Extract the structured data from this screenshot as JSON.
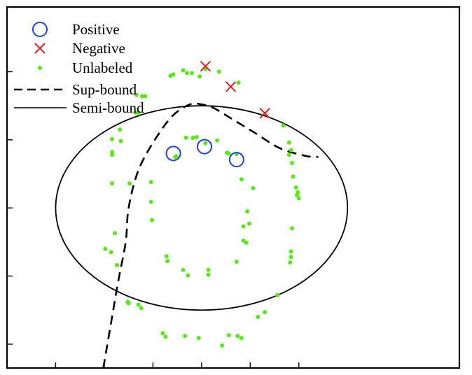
{
  "chart_data": {
    "type": "scatter",
    "title": "",
    "xlabel": "",
    "ylabel": "",
    "xlim": [
      -2.0,
      2.65
    ],
    "ylim": [
      -2.35,
      2.95
    ],
    "grid": false,
    "legend_placement": "top-left",
    "xticks": [
      -1.5,
      -1.0,
      -0.5,
      0.0,
      0.5,
      1.0
    ],
    "yticks": [
      -2.0,
      -1.0,
      0.0,
      1.0,
      2.0
    ],
    "tick_labels_shown": false,
    "series": [
      {
        "name": "Positive",
        "marker": "open-circle",
        "color": "#1f3fe0",
        "points": [
          [
            -0.29,
            0.8
          ],
          [
            0.03,
            0.9
          ],
          [
            0.36,
            0.71
          ]
        ]
      },
      {
        "name": "Negative",
        "marker": "x",
        "color": "#e0201e",
        "points": [
          [
            0.04,
            2.08
          ],
          [
            0.3,
            1.78
          ],
          [
            0.65,
            1.39
          ]
        ]
      },
      {
        "name": "Unlabeled",
        "marker": "dot",
        "color": "#57e818",
        "points": [
          [
            -0.32,
            1.94
          ],
          [
            -0.29,
            1.96
          ],
          [
            -0.19,
            2.02
          ],
          [
            -0.15,
            1.98
          ],
          [
            -0.1,
            1.98
          ],
          [
            -0.02,
            1.93
          ],
          [
            0.04,
            2.04
          ],
          [
            0.18,
            2.0
          ],
          [
            0.38,
            1.84
          ],
          [
            -0.67,
            1.66
          ],
          [
            -0.61,
            1.64
          ],
          [
            -0.58,
            1.64
          ],
          [
            -0.68,
            1.4
          ],
          [
            -0.65,
            1.4
          ],
          [
            -0.84,
            1.15
          ],
          [
            -0.83,
            0.98
          ],
          [
            -0.92,
            1.01
          ],
          [
            -0.92,
            0.82
          ],
          [
            -0.92,
            0.78
          ],
          [
            -0.92,
            0.36
          ],
          [
            -0.74,
            0.36
          ],
          [
            -0.89,
            -0.37
          ],
          [
            -0.93,
            -0.65
          ],
          [
            -0.99,
            -0.6
          ],
          [
            -0.87,
            -0.84
          ],
          [
            -0.76,
            -1.38
          ],
          [
            -0.75,
            -1.4
          ],
          [
            -0.65,
            -1.42
          ],
          [
            -0.62,
            -1.47
          ],
          [
            -0.4,
            -1.84
          ],
          [
            -0.37,
            -1.89
          ],
          [
            -0.17,
            -1.88
          ],
          [
            -0.03,
            -1.91
          ],
          [
            0.21,
            -2.02
          ],
          [
            0.28,
            -1.87
          ],
          [
            0.37,
            -1.88
          ],
          [
            0.41,
            -1.91
          ],
          [
            0.58,
            -1.6
          ],
          [
            0.65,
            -1.53
          ],
          [
            0.78,
            -1.28
          ],
          [
            0.91,
            -0.8
          ],
          [
            0.92,
            -0.72
          ],
          [
            0.92,
            -0.64
          ],
          [
            0.93,
            -0.3
          ],
          [
            0.98,
            0.19
          ],
          [
            1.0,
            0.14
          ],
          [
            0.99,
            0.23
          ],
          [
            0.97,
            0.3
          ],
          [
            0.94,
            0.46
          ],
          [
            0.93,
            0.66
          ],
          [
            0.9,
            0.78
          ],
          [
            0.92,
            0.85
          ],
          [
            0.9,
            0.96
          ],
          [
            0.84,
            1.21
          ],
          [
            -0.16,
            1.03
          ],
          [
            -0.09,
            1.03
          ],
          [
            -0.05,
            1.04
          ],
          [
            0.04,
            0.95
          ],
          [
            0.16,
            0.99
          ],
          [
            0.26,
            0.81
          ],
          [
            0.28,
            0.8
          ],
          [
            0.36,
            0.79
          ],
          [
            -0.26,
            0.76
          ],
          [
            -0.27,
            0.75
          ],
          [
            -0.52,
            0.38
          ],
          [
            -0.52,
            0.09
          ],
          [
            -0.51,
            -0.18
          ],
          [
            0.41,
            0.42
          ],
          [
            0.53,
            0.29
          ],
          [
            0.47,
            -0.05
          ],
          [
            0.43,
            -0.27
          ],
          [
            0.49,
            -0.23
          ],
          [
            0.43,
            -0.48
          ],
          [
            0.46,
            -0.51
          ],
          [
            0.36,
            -0.79
          ],
          [
            -0.36,
            -0.71
          ],
          [
            -0.35,
            -0.78
          ],
          [
            -0.19,
            -0.91
          ],
          [
            -0.14,
            -0.99
          ],
          [
            0.07,
            -0.91
          ],
          [
            0.07,
            -0.98
          ]
        ]
      },
      {
        "name": "Sup-bound",
        "style": "dashed-line",
        "color": "#000000",
        "points": [
          [
            -1.01,
            -2.35
          ],
          [
            -0.92,
            -1.6
          ],
          [
            -0.86,
            -1.1
          ],
          [
            -0.78,
            -0.5
          ],
          [
            -0.75,
            0.0
          ],
          [
            -0.65,
            0.55
          ],
          [
            -0.48,
            1.0
          ],
          [
            -0.3,
            1.35
          ],
          [
            -0.12,
            1.52
          ],
          [
            0.0,
            1.52
          ],
          [
            0.12,
            1.47
          ],
          [
            0.32,
            1.3
          ],
          [
            0.55,
            1.1
          ],
          [
            0.8,
            0.88
          ],
          [
            1.05,
            0.77
          ],
          [
            1.15,
            0.75
          ],
          [
            1.2,
            0.75
          ]
        ]
      },
      {
        "name": "Semi-bound",
        "style": "solid-line",
        "color": "#000000",
        "circle": {
          "cx": 0.0,
          "cy": 0.0,
          "r": 1.5
        }
      }
    ]
  }
}
